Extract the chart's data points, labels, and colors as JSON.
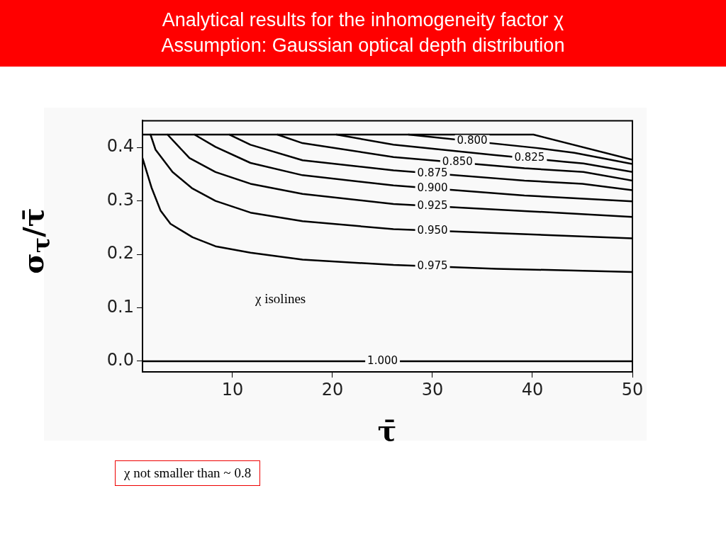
{
  "chart_data": {
    "type": "line",
    "title": "Analytical results for the inhomogeneity factor χ",
    "subtitle": "Assumption: Gaussian optical depth distribution",
    "xlabel": "τ̄",
    "ylabel": "σ$_{τ}$/τ̄",
    "xlim": [
      1,
      50
    ],
    "ylim": [
      -0.02,
      0.45
    ],
    "xticks": [
      10,
      20,
      30,
      40,
      50
    ],
    "yticks": [
      {
        "value": 0,
        "label": "0.0"
      },
      0.1,
      0.2,
      0.3,
      0.4
    ],
    "grid": false,
    "legend": false,
    "marker": "none",
    "line_style": "solid",
    "annotations": [
      "χ isolines",
      "χ not smaller than ~ 0.8"
    ],
    "series": [
      {
        "color": "#000000",
        "x": [
          1,
          40.1,
          50
        ],
        "values": [
          0.424,
          0.424,
          0.377
        ]
      },
      {
        "name": "0.800",
        "color": "#000000",
        "x": [
          27.6,
          40.4,
          44.2,
          50
        ],
        "values": [
          0.424,
          0.399,
          0.39,
          0.369
        ]
      },
      {
        "name": "0.825",
        "color": "#000000",
        "x": [
          20.4,
          26.1,
          36.1,
          43.3,
          45.1,
          50
        ],
        "values": [
          0.424,
          0.405,
          0.386,
          0.373,
          0.37,
          0.354
        ]
      },
      {
        "name": "0.850",
        "color": "#000000",
        "x": [
          14.5,
          17,
          26.1,
          39.2,
          45.1,
          50
        ],
        "values": [
          0.424,
          0.408,
          0.382,
          0.361,
          0.354,
          0.338
        ]
      },
      {
        "name": "0.875",
        "color": "#000000",
        "x": [
          9.7,
          11.8,
          17,
          26.1,
          39.2,
          45,
          50
        ],
        "values": [
          0.424,
          0.405,
          0.376,
          0.357,
          0.338,
          0.332,
          0.32
        ]
      },
      {
        "name": "0.900",
        "color": "#000000",
        "x": [
          6.2,
          8.3,
          11.8,
          17,
          26.1,
          39.2,
          50
        ],
        "values": [
          0.424,
          0.401,
          0.371,
          0.348,
          0.329,
          0.31,
          0.299
        ]
      },
      {
        "name": "0.925",
        "color": "#000000",
        "x": [
          3.5,
          5.7,
          8.3,
          11.8,
          17,
          26.1,
          39.2,
          50
        ],
        "values": [
          0.424,
          0.38,
          0.354,
          0.332,
          0.313,
          0.294,
          0.281,
          0.27
        ]
      },
      {
        "name": "0.950",
        "color": "#000000",
        "x": [
          1.8,
          2.3,
          4,
          6,
          8.3,
          11.8,
          17,
          26.1,
          50
        ],
        "values": [
          0.424,
          0.396,
          0.354,
          0.323,
          0.3,
          0.278,
          0.262,
          0.247,
          0.23
        ]
      },
      {
        "name": "0.975",
        "color": "#000000",
        "x": [
          1,
          1.9,
          2.8,
          3.8,
          6,
          8.3,
          11.8,
          17,
          26.1,
          36.4,
          50
        ],
        "values": [
          0.38,
          0.325,
          0.282,
          0.257,
          0.232,
          0.215,
          0.203,
          0.19,
          0.18,
          0.173,
          0.167
        ]
      },
      {
        "name": "1.000",
        "color": "#000000",
        "x": [
          1,
          50
        ],
        "values": [
          0,
          0
        ]
      }
    ]
  }
}
